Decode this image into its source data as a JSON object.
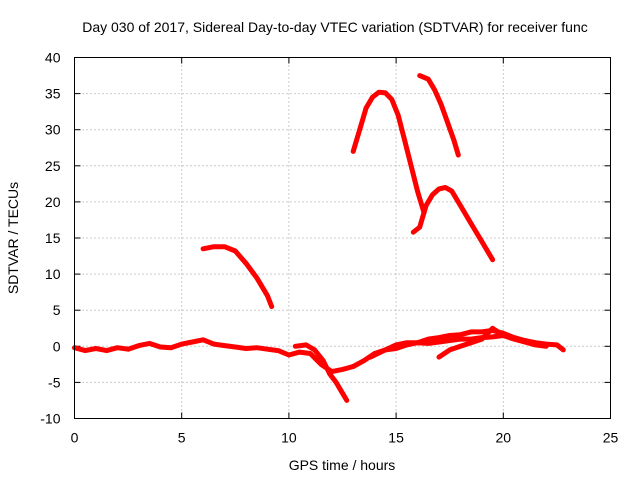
{
  "chart_data": {
    "type": "line",
    "title": "Day 030 of 2017, Sidereal Day-to-day VTEC variation (SDTVAR) for receiver func",
    "xlabel": "GPS time / hours",
    "ylabel": "SDTVAR / TECUs",
    "xlim": [
      0,
      25
    ],
    "ylim": [
      -10,
      40
    ],
    "xticks": [
      0,
      5,
      10,
      15,
      20,
      25
    ],
    "yticks": [
      -10,
      -5,
      0,
      5,
      10,
      15,
      20,
      25,
      30,
      35,
      40
    ],
    "grid": true,
    "legend": "none",
    "series_color": "#ff0000",
    "series": [
      {
        "name": "track-1",
        "x": [
          0,
          0.5,
          1,
          1.5,
          2,
          2.5,
          3,
          3.5,
          4,
          4.5,
          5,
          5.5,
          6,
          6.5,
          7,
          7.5,
          8,
          8.5,
          9,
          9.5,
          10,
          10.5,
          11,
          11.5,
          12,
          12.5,
          13
        ],
        "y": [
          -0.2,
          -0.6,
          -0.3,
          -0.6,
          -0.2,
          -0.4,
          0.1,
          0.4,
          -0.1,
          -0.2,
          0.3,
          0.6,
          0.9,
          0.3,
          0.1,
          -0.1,
          -0.3,
          -0.2,
          -0.4,
          -0.6,
          -1.2,
          -0.8,
          -1.0,
          -2.5,
          -3.5,
          -3.2,
          -2.8
        ]
      },
      {
        "name": "track-2",
        "x": [
          10.3,
          10.8,
          11.2,
          11.6,
          11.9,
          12.2,
          12.5,
          12.7
        ],
        "y": [
          0,
          0.2,
          -0.5,
          -2.0,
          -3.8,
          -5.0,
          -6.5,
          -7.5
        ]
      },
      {
        "name": "track-3",
        "x": [
          13,
          13.5,
          14,
          14.5,
          15,
          15.5,
          16,
          16.5,
          17,
          17.5,
          18,
          18.5,
          19,
          19.5,
          20,
          20.5,
          21,
          21.5,
          22,
          22.5,
          22.8
        ],
        "y": [
          -2.8,
          -2.0,
          -1.0,
          -0.5,
          0.2,
          0.5,
          0.5,
          1.0,
          1.2,
          1.5,
          1.6,
          2.0,
          2.0,
          2.2,
          1.8,
          1.2,
          0.8,
          0.5,
          0.3,
          0.2,
          -0.5
        ]
      },
      {
        "name": "track-4",
        "x": [
          13.8,
          14.5,
          15,
          15.5,
          16,
          16.5,
          17,
          17.5,
          18,
          18.5,
          19,
          19.5,
          20
        ],
        "y": [
          -1.5,
          -0.5,
          -0.3,
          0.2,
          0.5,
          0.4,
          0.6,
          0.8,
          1.0,
          1.0,
          1.2,
          1.3,
          1.5
        ]
      },
      {
        "name": "track-5",
        "x": [
          17,
          17.5,
          18,
          18.5,
          19,
          19.5,
          20,
          20.5,
          21,
          21.5,
          22
        ],
        "y": [
          -1.5,
          -0.5,
          0,
          0.5,
          1.0,
          2.5,
          1.5,
          1.0,
          0.6,
          0.2,
          0
        ]
      },
      {
        "name": "track-6",
        "x": [
          6,
          6.5,
          7,
          7.5,
          8,
          8.5,
          9,
          9.2
        ],
        "y": [
          13.5,
          13.8,
          13.8,
          13.2,
          11.5,
          9.5,
          7.0,
          5.5
        ]
      },
      {
        "name": "track-7",
        "x": [
          13,
          13.3,
          13.6,
          13.9,
          14.2,
          14.5,
          14.8,
          15.1,
          15.4,
          15.7,
          16,
          16.3
        ],
        "y": [
          27,
          30,
          33,
          34.5,
          35.2,
          35.1,
          34.2,
          32,
          28.5,
          25,
          21.5,
          18.5
        ]
      },
      {
        "name": "track-8",
        "x": [
          15.8,
          16.1,
          16.4,
          16.7,
          17,
          17.3,
          17.6,
          18,
          18.5,
          19,
          19.5
        ],
        "y": [
          15.8,
          16.5,
          19.5,
          21.0,
          21.8,
          22.0,
          21.5,
          19.5,
          17.0,
          14.5,
          12.0
        ]
      },
      {
        "name": "track-9",
        "x": [
          16.1,
          16.5,
          16.8,
          17.1,
          17.4,
          17.7,
          17.9
        ],
        "y": [
          37.5,
          37.0,
          35.5,
          33.5,
          31.0,
          28.5,
          26.5
        ]
      }
    ]
  }
}
